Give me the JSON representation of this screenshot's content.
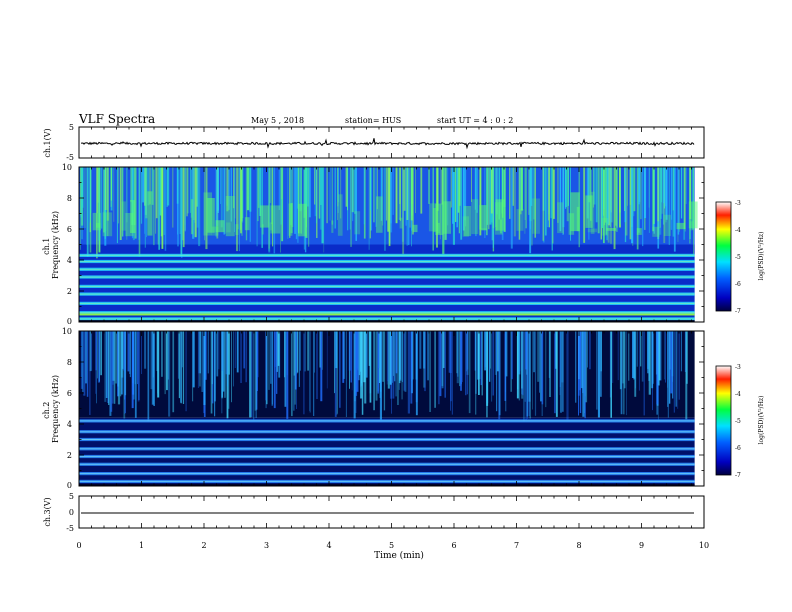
{
  "header": {
    "title": "VLF Spectra",
    "date": "May 5 , 2018",
    "station": "station= HUS",
    "start": "start  UT =   4 : 0  : 2"
  },
  "chart_data": [
    {
      "type": "line",
      "panel": "ch1-waveform",
      "ylabel": "ch.1(V)",
      "ylim": [
        -5,
        5
      ],
      "yticks": [
        "5",
        "-5"
      ],
      "xlim": [
        0,
        10
      ],
      "baseline": -0.3
    },
    {
      "type": "heatmap",
      "panel": "ch1-spectrogram",
      "ylabel": "ch.1\nFrequency (kHz)",
      "ylim": [
        0,
        10
      ],
      "yticks": [
        "0",
        "2",
        "4",
        "6",
        "8",
        "10"
      ],
      "xlim": [
        0,
        10
      ],
      "data_end_min": 9.85,
      "colorbar": {
        "label": "log(PSD)(V²/Hz)",
        "range": [
          -7,
          -3
        ],
        "ticks": [
          "-3",
          "-4",
          "-5",
          "-6",
          "-7"
        ]
      },
      "bands_khz": [
        0.2,
        0.6,
        1.2,
        1.8,
        2.3,
        2.9,
        3.4,
        3.9,
        4.3
      ],
      "noise_band_khz": [
        5,
        10
      ]
    },
    {
      "type": "heatmap",
      "panel": "ch2-spectrogram",
      "ylabel": "ch.2\nFrequency (kHz)",
      "ylim": [
        0,
        10
      ],
      "yticks": [
        "0",
        "2",
        "4",
        "6",
        "8",
        "10"
      ],
      "xlim": [
        0,
        10
      ],
      "data_end_min": 9.85,
      "colorbar": {
        "label": "log(PSD)(V²/Hz)",
        "range": [
          -7,
          -3
        ],
        "ticks": [
          "-3",
          "-4",
          "-5",
          "-6",
          "-7"
        ]
      },
      "bands_khz": [
        0.3,
        0.8,
        1.4,
        1.9,
        2.4,
        3.0,
        3.5,
        4.2
      ],
      "noise_band_khz": [
        4.4,
        10
      ]
    },
    {
      "type": "line",
      "panel": "ch3-waveform",
      "ylabel": "ch.3(V)",
      "ylim": [
        -5,
        5
      ],
      "yticks": [
        "5",
        "0",
        "-5"
      ],
      "xlim": [
        0,
        10
      ],
      "baseline": -0.3,
      "xlabel": "Time  (min)",
      "xticks": [
        "0",
        "1",
        "2",
        "3",
        "4",
        "5",
        "6",
        "7",
        "8",
        "9",
        "10"
      ]
    }
  ]
}
